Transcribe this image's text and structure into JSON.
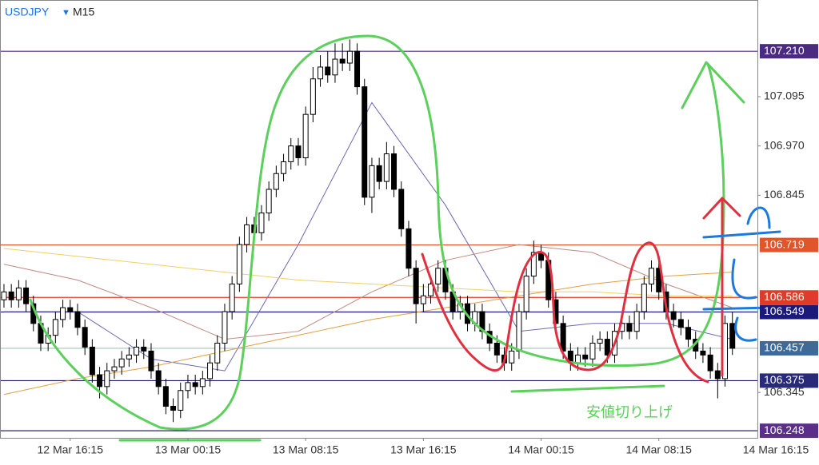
{
  "chart_data": {
    "type": "candlestick",
    "symbol": "USDJPY",
    "marker": "▼",
    "timeframe": "M15",
    "xlim": [
      -0.54,
      102.4
    ],
    "ylim": [
      106.23,
      107.34
    ],
    "yticks": [
      107.095,
      {
        "value": 106.97,
        "label": "106.970"
      },
      106.845,
      106.345
    ],
    "xticks": [
      {
        "value": 9,
        "label": "12 Mar 16:15"
      },
      {
        "value": 25,
        "label": "13 Mar 00:15"
      },
      {
        "value": 41,
        "label": "13 Mar 08:15"
      },
      {
        "value": 57,
        "label": "13 Mar 16:15"
      },
      {
        "value": 73,
        "label": "14 Mar 00:15"
      },
      {
        "value": 89,
        "label": "14 Mar 08:15"
      },
      {
        "value": 105,
        "label": "14 Mar 16:15"
      }
    ],
    "levels": [
      {
        "value": 107.21,
        "label": "107.210",
        "color": "#4b2a82",
        "label_color": "#4b2a82"
      },
      {
        "value": 106.719,
        "label": "106.719",
        "color": "#e0552a",
        "label_color": "#e0552a"
      },
      {
        "value": 106.586,
        "label": "106.586",
        "color": "#e03a2a",
        "label_color": "#e03a2a"
      },
      {
        "value": 106.549,
        "label": "106.549",
        "color": "#1a1a7a",
        "label_color": "#1a1a7a"
      },
      {
        "value": 106.457,
        "label": "106.457",
        "color": "#a8c0b8",
        "label_color": "#3e6a9a"
      },
      {
        "value": 106.375,
        "label": "106.375",
        "color": "#1a1a6a",
        "label_color": "#2a2a7a"
      },
      {
        "value": 106.248,
        "label": "106.248",
        "color": "#2a2266",
        "label_color": "#5a2e8a"
      }
    ],
    "up_color": "#ffffff",
    "down_color": "#000000",
    "candles": [
      [
        106.58,
        106.62,
        106.56,
        106.6
      ],
      [
        106.6,
        106.62,
        106.56,
        106.58
      ],
      [
        106.58,
        106.63,
        106.56,
        106.61
      ],
      [
        106.61,
        106.63,
        106.55,
        106.57
      ],
      [
        106.57,
        106.59,
        106.5,
        106.52
      ],
      [
        106.52,
        106.54,
        106.45,
        106.47
      ],
      [
        106.47,
        106.51,
        106.45,
        106.49
      ],
      [
        106.49,
        106.55,
        106.47,
        106.53
      ],
      [
        106.53,
        106.58,
        106.51,
        106.56
      ],
      [
        106.56,
        106.58,
        106.53,
        106.55
      ],
      [
        106.55,
        106.57,
        106.49,
        106.51
      ],
      [
        106.51,
        106.53,
        106.44,
        106.46
      ],
      [
        106.46,
        106.48,
        106.37,
        106.39
      ],
      [
        106.39,
        106.41,
        106.33,
        106.36
      ],
      [
        106.36,
        106.42,
        106.34,
        106.4
      ],
      [
        106.4,
        106.43,
        106.38,
        106.41
      ],
      [
        106.41,
        106.45,
        106.39,
        106.43
      ],
      [
        106.43,
        106.46,
        106.41,
        106.44
      ],
      [
        106.44,
        106.48,
        106.42,
        106.46
      ],
      [
        106.46,
        106.48,
        106.43,
        106.45
      ],
      [
        106.45,
        106.47,
        106.38,
        106.4
      ],
      [
        106.4,
        106.42,
        106.34,
        106.36
      ],
      [
        106.36,
        106.38,
        106.29,
        106.31
      ],
      [
        106.31,
        106.33,
        106.27,
        106.3
      ],
      [
        106.3,
        106.37,
        106.28,
        106.35
      ],
      [
        106.35,
        106.39,
        106.33,
        106.37
      ],
      [
        106.37,
        106.39,
        106.34,
        106.36
      ],
      [
        106.36,
        106.4,
        106.34,
        106.38
      ],
      [
        106.38,
        106.44,
        106.36,
        106.42
      ],
      [
        106.42,
        106.49,
        106.4,
        106.47
      ],
      [
        106.47,
        106.57,
        106.45,
        106.55
      ],
      [
        106.55,
        106.64,
        106.53,
        106.62
      ],
      [
        106.62,
        106.74,
        106.6,
        106.72
      ],
      [
        106.72,
        106.79,
        106.7,
        106.77
      ],
      [
        106.77,
        106.79,
        106.72,
        106.75
      ],
      [
        106.75,
        106.82,
        106.73,
        106.8
      ],
      [
        106.8,
        106.88,
        106.78,
        106.86
      ],
      [
        106.86,
        106.92,
        106.84,
        106.9
      ],
      [
        106.9,
        106.95,
        106.88,
        106.93
      ],
      [
        106.93,
        106.99,
        106.91,
        106.97
      ],
      [
        106.97,
        106.99,
        106.92,
        106.94
      ],
      [
        106.94,
        107.07,
        106.92,
        107.05
      ],
      [
        107.05,
        107.17,
        107.03,
        107.14
      ],
      [
        107.14,
        107.2,
        107.12,
        107.17
      ],
      [
        107.17,
        107.21,
        107.13,
        107.15
      ],
      [
        107.15,
        107.23,
        107.13,
        107.19
      ],
      [
        107.19,
        107.23,
        107.16,
        107.18
      ],
      [
        107.18,
        107.24,
        107.16,
        107.21
      ],
      [
        107.21,
        107.23,
        107.1,
        107.12
      ],
      [
        107.12,
        107.14,
        106.82,
        106.84
      ],
      [
        106.84,
        106.94,
        106.8,
        106.92
      ],
      [
        106.92,
        106.94,
        106.86,
        106.88
      ],
      [
        106.88,
        106.98,
        106.86,
        106.95
      ],
      [
        106.95,
        106.97,
        106.84,
        106.86
      ],
      [
        106.86,
        106.88,
        106.74,
        106.76
      ],
      [
        106.76,
        106.78,
        106.64,
        106.66
      ],
      [
        106.66,
        106.68,
        106.52,
        106.57
      ],
      [
        106.57,
        106.62,
        106.55,
        106.59
      ],
      [
        106.59,
        106.64,
        106.57,
        106.62
      ],
      [
        106.62,
        106.68,
        106.6,
        106.66
      ],
      [
        106.66,
        106.68,
        106.58,
        106.6
      ],
      [
        106.6,
        106.62,
        106.53,
        106.55
      ],
      [
        106.55,
        106.59,
        106.53,
        106.57
      ],
      [
        106.57,
        106.59,
        106.5,
        106.52
      ],
      [
        106.52,
        106.57,
        106.5,
        106.55
      ],
      [
        106.55,
        106.57,
        106.48,
        106.5
      ],
      [
        106.5,
        106.52,
        106.45,
        106.47
      ],
      [
        106.47,
        106.49,
        106.42,
        106.44
      ],
      [
        106.44,
        106.46,
        106.4,
        106.42
      ],
      [
        106.42,
        106.47,
        106.4,
        106.45
      ],
      [
        106.45,
        106.57,
        106.43,
        106.55
      ],
      [
        106.55,
        106.66,
        106.53,
        106.64
      ],
      [
        106.64,
        106.73,
        106.62,
        106.7
      ],
      [
        106.7,
        106.72,
        106.66,
        106.68
      ],
      [
        106.68,
        106.7,
        106.56,
        106.58
      ],
      [
        106.58,
        106.6,
        106.5,
        106.52
      ],
      [
        106.52,
        106.54,
        106.43,
        106.45
      ],
      [
        106.45,
        106.47,
        106.4,
        106.42
      ],
      [
        106.42,
        106.46,
        106.4,
        106.44
      ],
      [
        106.44,
        106.46,
        106.41,
        106.43
      ],
      [
        106.43,
        106.49,
        106.41,
        106.47
      ],
      [
        106.47,
        106.5,
        106.45,
        106.48
      ],
      [
        106.48,
        106.5,
        106.42,
        106.44
      ],
      [
        106.44,
        106.52,
        106.42,
        106.5
      ],
      [
        106.5,
        106.54,
        106.48,
        106.52
      ],
      [
        106.52,
        106.54,
        106.48,
        106.5
      ],
      [
        106.5,
        106.57,
        106.48,
        106.55
      ],
      [
        106.55,
        106.64,
        106.53,
        106.62
      ],
      [
        106.62,
        106.68,
        106.6,
        106.66
      ],
      [
        106.66,
        106.68,
        106.58,
        106.6
      ],
      [
        106.6,
        106.62,
        106.53,
        106.55
      ],
      [
        106.55,
        106.57,
        106.51,
        106.53
      ],
      [
        106.53,
        106.55,
        106.49,
        106.51
      ],
      [
        106.51,
        106.53,
        106.46,
        106.48
      ],
      [
        106.48,
        106.5,
        106.43,
        106.45
      ],
      [
        106.45,
        106.47,
        106.42,
        106.44
      ],
      [
        106.44,
        106.46,
        106.38,
        106.4
      ],
      [
        106.4,
        106.42,
        106.33,
        106.38
      ],
      [
        106.38,
        106.54,
        106.36,
        106.52
      ],
      [
        106.52,
        106.55,
        106.44,
        106.457
      ]
    ],
    "moving_averages": [
      {
        "color": "#6a6ab0",
        "x": [
          0,
          10,
          20,
          30,
          40,
          50,
          60,
          70,
          80,
          90,
          99
        ],
        "values": [
          106.55,
          106.55,
          106.43,
          106.4,
          106.72,
          107.08,
          106.82,
          106.5,
          106.52,
          106.52,
          106.48
        ]
      },
      {
        "color": "#c08a80",
        "x": [
          0,
          10,
          20,
          30,
          40,
          50,
          60,
          70,
          80,
          90,
          99
        ],
        "values": [
          106.67,
          106.63,
          106.56,
          106.48,
          106.5,
          106.6,
          106.68,
          106.72,
          106.7,
          106.62,
          106.56
        ]
      },
      {
        "color": "#f0d060",
        "x": [
          0,
          10,
          20,
          30,
          40,
          50,
          60,
          70,
          80,
          90,
          99
        ],
        "values": [
          106.71,
          106.69,
          106.67,
          106.65,
          106.63,
          106.62,
          106.61,
          106.6,
          106.6,
          106.59,
          106.59
        ]
      },
      {
        "color": "#e0a040",
        "x": [
          0,
          10,
          20,
          30,
          40,
          50,
          60,
          70,
          80,
          90,
          99
        ],
        "values": [
          106.34,
          106.38,
          106.41,
          106.45,
          106.49,
          106.53,
          106.56,
          106.59,
          106.62,
          106.64,
          106.65
        ]
      }
    ],
    "annotation": {
      "text": "安値切り上げ",
      "color": "#5ccf5c"
    }
  }
}
